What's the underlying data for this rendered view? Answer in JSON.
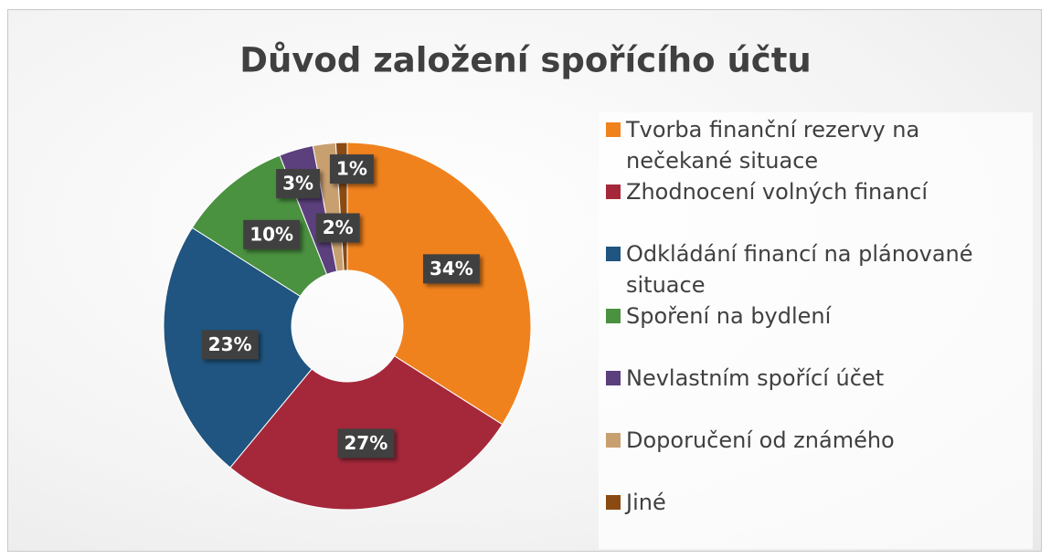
{
  "chart_data": {
    "type": "donut",
    "title": "Důvod založení spořícího účtu",
    "categories": [
      "Tvorba finanční rezervy na nečekané situace",
      "Zhodnocení volných financí",
      "Odkládání financí na plánované situace",
      "Spoření na bydlení",
      "Nevlastním spořící účet",
      "Doporučení od známého",
      "Jiné"
    ],
    "values": [
      34,
      27,
      23,
      10,
      3,
      2,
      1
    ],
    "value_labels": [
      "34%",
      "27%",
      "23%",
      "10%",
      "3%",
      "2%",
      "1%"
    ],
    "colors": [
      "#f0821e",
      "#a5283a",
      "#1f5580",
      "#4a9140",
      "#5c3f7d",
      "#c8a070",
      "#8a4a12"
    ],
    "legend": "right"
  }
}
